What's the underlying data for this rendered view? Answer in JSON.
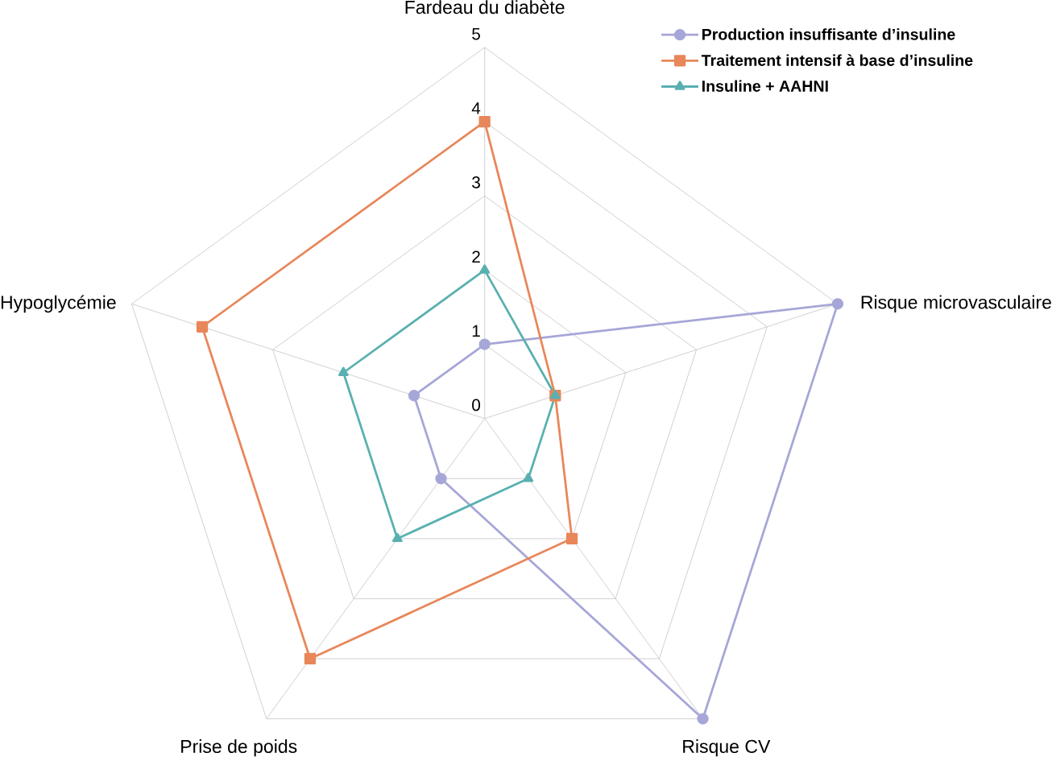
{
  "chart_data": {
    "type": "radar",
    "categories": [
      "Fardeau du diabète",
      "Risque microvasculaire",
      "Risque CV",
      "Prise de poids",
      "Hypoglycémie"
    ],
    "series": [
      {
        "name": "Production insuffisante d’insuline",
        "color": "#a6a6d8",
        "marker": "circle",
        "values": [
          1,
          5,
          5,
          1,
          1
        ]
      },
      {
        "name": "Traitement intensif à base d’insuline",
        "color": "#e8875a",
        "marker": "square",
        "values": [
          4,
          1,
          2,
          4,
          4
        ]
      },
      {
        "name": "Insuline + AAHNI",
        "color": "#5ab0b0",
        "marker": "triangle",
        "values": [
          2,
          1,
          1,
          2,
          2
        ]
      }
    ],
    "ylim": [
      0,
      5
    ],
    "yticks": [
      0,
      1,
      2,
      3,
      4,
      5
    ],
    "grid": true,
    "legend": "top right",
    "line_style": "solid"
  }
}
